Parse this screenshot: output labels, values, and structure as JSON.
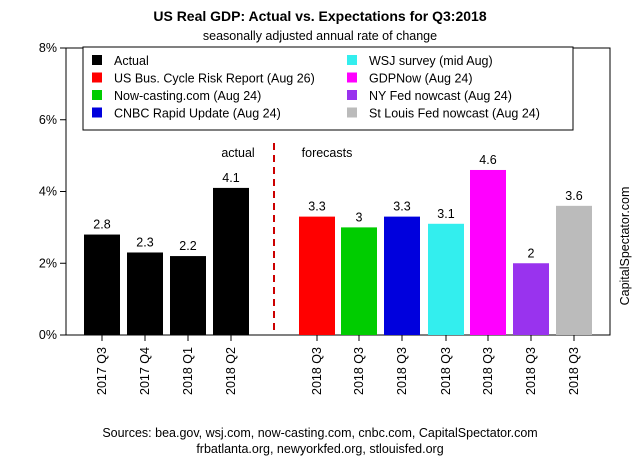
{
  "chart_data": {
    "type": "bar",
    "title": "US Real GDP: Actual vs. Expectations for Q3:2018",
    "subtitle": "seasonally adjusted annual rate of change",
    "ylim": [
      0,
      8
    ],
    "y_ticks": [
      "0%",
      "2%",
      "4%",
      "6%",
      "8%"
    ],
    "y_tick_values": [
      0,
      2,
      4,
      6,
      8
    ],
    "grid": false,
    "legend_position": "top",
    "side_label": "CapitalSpectator.com",
    "annotations": {
      "actual": "actual",
      "forecasts": "forecasts"
    },
    "bars": [
      {
        "category": "2017 Q3",
        "value": 2.8,
        "label": "2.8",
        "series": "Actual",
        "color": "#000000"
      },
      {
        "category": "2017 Q4",
        "value": 2.3,
        "label": "2.3",
        "series": "Actual",
        "color": "#000000"
      },
      {
        "category": "2018 Q1",
        "value": 2.2,
        "label": "2.2",
        "series": "Actual",
        "color": "#000000"
      },
      {
        "category": "2018 Q2",
        "value": 4.1,
        "label": "4.1",
        "series": "Actual",
        "color": "#000000"
      },
      {
        "category": "2018 Q3",
        "value": 3.3,
        "label": "3.3",
        "series": "US Bus. Cycle Risk Report (Aug 26)",
        "color": "#ff0000"
      },
      {
        "category": "2018 Q3",
        "value": 3.0,
        "label": "3",
        "series": "Now-casting.com (Aug 24)",
        "color": "#00cc00"
      },
      {
        "category": "2018 Q3",
        "value": 3.3,
        "label": "3.3",
        "series": "CNBC Rapid Update (Aug 24)",
        "color": "#0000dd"
      },
      {
        "category": "2018 Q3",
        "value": 3.1,
        "label": "3.1",
        "series": "WSJ survey (mid Aug)",
        "color": "#33eeee"
      },
      {
        "category": "2018 Q3",
        "value": 4.6,
        "label": "4.6",
        "series": "GDPNow (Aug 24)",
        "color": "#ff00ff"
      },
      {
        "category": "2018 Q3",
        "value": 2.0,
        "label": "2",
        "series": "NY Fed nowcast (Aug 24)",
        "color": "#9933ee"
      },
      {
        "category": "2018 Q3",
        "value": 3.6,
        "label": "3.6",
        "series": "St Louis Fed nowcast (Aug 24)",
        "color": "#bbbbbb"
      }
    ],
    "legend": {
      "left": [
        {
          "name": "Actual",
          "color": "#000000"
        },
        {
          "name": "US Bus. Cycle Risk Report (Aug 26)",
          "color": "#ff0000"
        },
        {
          "name": "Now-casting.com (Aug 24)",
          "color": "#00cc00"
        },
        {
          "name": "CNBC Rapid Update (Aug 24)",
          "color": "#0000dd"
        }
      ],
      "right": [
        {
          "name": "WSJ survey (mid Aug)",
          "color": "#33eeee"
        },
        {
          "name": "GDPNow (Aug 24)",
          "color": "#ff00ff"
        },
        {
          "name": "NY Fed nowcast (Aug 24)",
          "color": "#9933ee"
        },
        {
          "name": "St Louis Fed nowcast (Aug 24)",
          "color": "#bbbbbb"
        }
      ]
    },
    "source_lines": [
      "Sources: bea.gov, wsj.com, now-casting.com, cnbc.com, CapitalSpectator.com",
      "frbatlanta.org, newyorkfed.org, stlouisfed.org"
    ]
  }
}
